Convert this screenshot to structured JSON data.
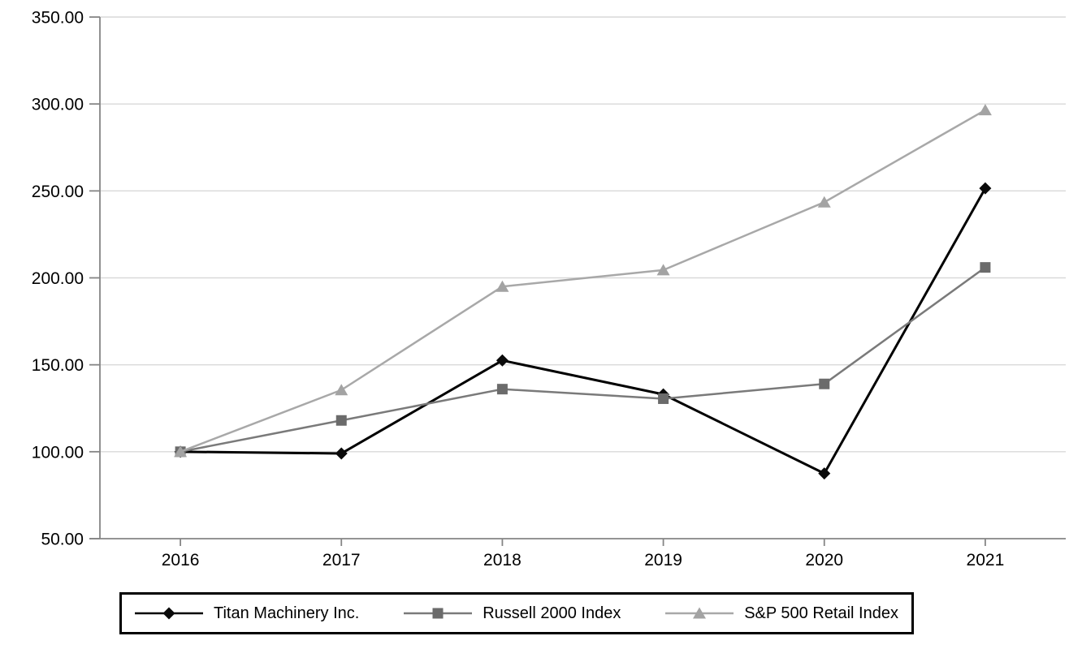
{
  "chart_data": {
    "type": "line",
    "title": "",
    "x_categories": [
      "2016",
      "2017",
      "2018",
      "2019",
      "2020",
      "2021"
    ],
    "series": [
      {
        "name": "Titan Machinery Inc.",
        "marker": "diamond",
        "line_color": "#000000",
        "marker_color": "#0a0a0a",
        "values": [
          100.0,
          99.0,
          152.5,
          133.0,
          87.5,
          251.5
        ]
      },
      {
        "name": "Russell 2000 Index",
        "marker": "square",
        "line_color": "#7a7a7a",
        "marker_color": "#6b6b6b",
        "values": [
          100.0,
          118.0,
          136.0,
          130.5,
          139.0,
          206.0
        ]
      },
      {
        "name": "S&P 500 Retail Index",
        "marker": "triangle",
        "line_color": "#a8a8a8",
        "marker_color": "#a3a3a3",
        "values": [
          100.0,
          135.5,
          195.0,
          204.5,
          243.5,
          296.5
        ]
      }
    ],
    "ylim": [
      50,
      350
    ],
    "yticks": [
      50,
      100,
      150,
      200,
      250,
      300,
      350
    ],
    "ytick_labels": [
      "50.00",
      "100.00",
      "150.00",
      "200.00",
      "250.00",
      "300.00",
      "350.00"
    ],
    "grid": true,
    "legend_position": "bottom",
    "colors": {
      "grid": "#d9d9d9",
      "axis": "#858585",
      "text": "#000000",
      "legend_border": "#000000",
      "background": "#ffffff"
    }
  }
}
